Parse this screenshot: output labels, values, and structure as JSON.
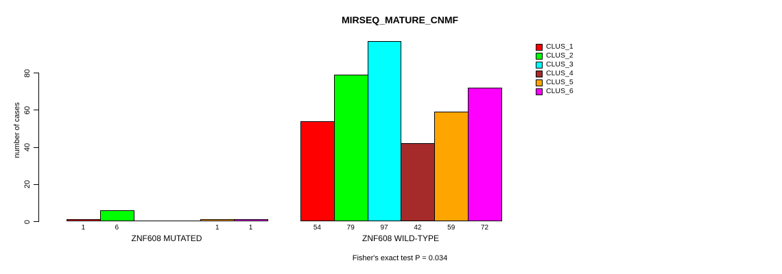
{
  "chart_data": {
    "type": "bar",
    "title": "MIRSEQ_MATURE_CNMF",
    "ylabel": "number of cases",
    "xlabel": "",
    "ylim": [
      0,
      100
    ],
    "yticks": [
      0,
      20,
      40,
      60,
      80
    ],
    "grid": false,
    "legend_position": "top-right",
    "legend_labels": [
      "CLUS_1",
      "CLUS_2",
      "CLUS_3",
      "CLUS_4",
      "CLUS_5",
      "CLUS_6"
    ],
    "series_colors": [
      "#ff0000",
      "#00ff00",
      "#00ffff",
      "#a52a2a",
      "#ffa500",
      "#ff00ff"
    ],
    "groups": [
      {
        "label": "ZNF608 MUTATED",
        "values": [
          1,
          6,
          0,
          0,
          1,
          1
        ],
        "bar_labels": [
          "1",
          "6",
          "",
          "",
          "1",
          "1"
        ]
      },
      {
        "label": "ZNF608 WILD-TYPE",
        "values": [
          54,
          79,
          97,
          42,
          59,
          72
        ],
        "bar_labels": [
          "54",
          "79",
          "97",
          "42",
          "59",
          "72"
        ]
      }
    ],
    "annotation": "Fisher's exact test P = 0.034"
  }
}
